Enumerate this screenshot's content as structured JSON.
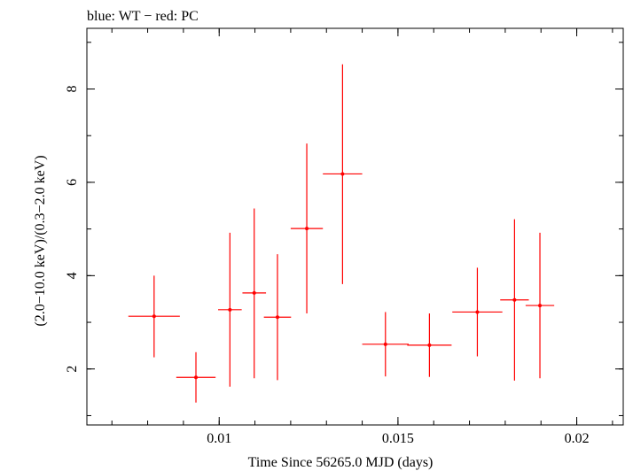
{
  "chart_data": {
    "type": "scatter",
    "title": "blue: WT − red: PC",
    "xlabel": "Time Since 56265.0 MJD (days)",
    "ylabel": "(2.0−10.0 keV)/(0.3−2.0 keV)",
    "xlim": [
      0.0063,
      0.0213
    ],
    "ylim": [
      0.8,
      9.3
    ],
    "x_ticks": [
      0.01,
      0.015,
      0.02
    ],
    "x_tick_labels": [
      "0.01",
      "0.015",
      "0.02"
    ],
    "x_minor_step": 0.001,
    "y_ticks": [
      2,
      4,
      6,
      8
    ],
    "y_tick_labels": [
      "2",
      "4",
      "6",
      "8"
    ],
    "y_minor_step": 1,
    "grid": false,
    "series": [
      {
        "name": "PC",
        "color": "#ff0000",
        "points": [
          {
            "x": 0.00818,
            "xerr": 0.00072,
            "y": 3.13,
            "ylo": 2.25,
            "yhi": 4.0
          },
          {
            "x": 0.00935,
            "xerr": 0.00055,
            "y": 1.82,
            "ylo": 1.28,
            "yhi": 2.36
          },
          {
            "x": 0.0103,
            "xerr": 0.00033,
            "y": 3.27,
            "ylo": 1.62,
            "yhi": 4.92
          },
          {
            "x": 0.01098,
            "xerr": 0.00033,
            "y": 3.63,
            "ylo": 1.8,
            "yhi": 5.44
          },
          {
            "x": 0.01163,
            "xerr": 0.00038,
            "y": 3.11,
            "ylo": 1.76,
            "yhi": 4.46
          },
          {
            "x": 0.01245,
            "xerr": 0.00045,
            "y": 5.01,
            "ylo": 3.19,
            "yhi": 6.83
          },
          {
            "x": 0.01345,
            "xerr": 0.00055,
            "y": 6.18,
            "ylo": 3.82,
            "yhi": 8.53
          },
          {
            "x": 0.01465,
            "xerr": 0.00065,
            "y": 2.53,
            "ylo": 1.84,
            "yhi": 3.22
          },
          {
            "x": 0.01588,
            "xerr": 0.00062,
            "y": 2.51,
            "ylo": 1.83,
            "yhi": 3.19
          },
          {
            "x": 0.01722,
            "xerr": 0.0007,
            "y": 3.22,
            "ylo": 2.27,
            "yhi": 4.17
          },
          {
            "x": 0.01826,
            "xerr": 0.0004,
            "y": 3.48,
            "ylo": 1.75,
            "yhi": 5.21
          },
          {
            "x": 0.01897,
            "xerr": 0.0004,
            "y": 3.36,
            "ylo": 1.8,
            "yhi": 4.92
          }
        ]
      }
    ]
  }
}
